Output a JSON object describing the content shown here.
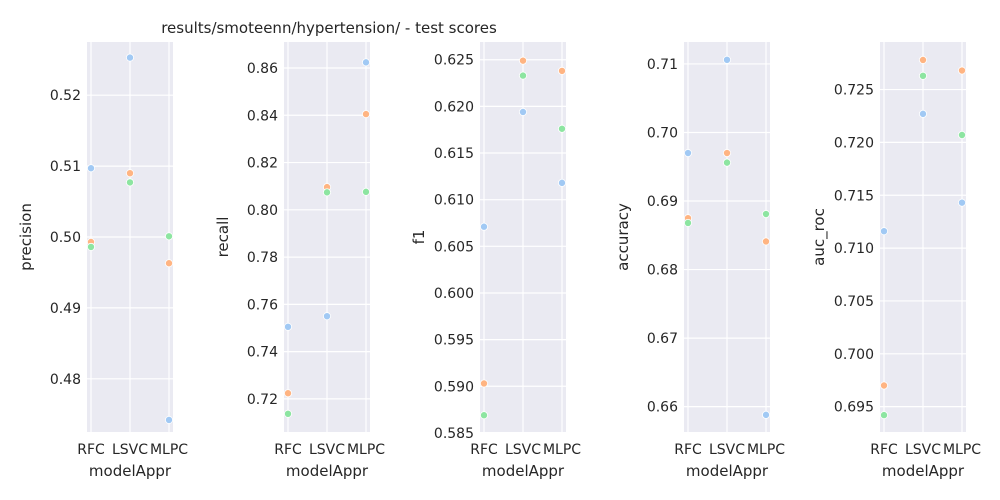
{
  "chart_data": {
    "type": "scatter",
    "title": "results/smoteenn/hypertension/ - test scores",
    "xlabel": "modelAppr",
    "categories": [
      "RFC",
      "LSVC",
      "MLPC"
    ],
    "palette": [
      "#a1c9f4",
      "#ffb482",
      "#8de5a1"
    ],
    "panels": [
      {
        "ylabel": "precision",
        "ylim": [
          0.4725,
          0.5275
        ],
        "yticks": [
          "0.48",
          "0.49",
          "0.50",
          "0.51",
          "0.52"
        ],
        "points": [
          {
            "x": "RFC",
            "y": 0.5097,
            "color": 0
          },
          {
            "x": "RFC",
            "y": 0.4993,
            "color": 1
          },
          {
            "x": "RFC",
            "y": 0.4986,
            "color": 2
          },
          {
            "x": "LSVC",
            "y": 0.5253,
            "color": 0
          },
          {
            "x": "LSVC",
            "y": 0.509,
            "color": 1
          },
          {
            "x": "LSVC",
            "y": 0.5077,
            "color": 2
          },
          {
            "x": "MLPC",
            "y": 0.4742,
            "color": 0
          },
          {
            "x": "MLPC",
            "y": 0.4963,
            "color": 1
          },
          {
            "x": "MLPC",
            "y": 0.5001,
            "color": 2
          }
        ]
      },
      {
        "ylabel": "recall",
        "ylim": [
          0.706,
          0.871
        ],
        "yticks": [
          "0.72",
          "0.74",
          "0.76",
          "0.78",
          "0.80",
          "0.82",
          "0.84",
          "0.86"
        ],
        "points": [
          {
            "x": "RFC",
            "y": 0.7505,
            "color": 0
          },
          {
            "x": "RFC",
            "y": 0.7224,
            "color": 1
          },
          {
            "x": "RFC",
            "y": 0.7137,
            "color": 2
          },
          {
            "x": "LSVC",
            "y": 0.755,
            "color": 0
          },
          {
            "x": "LSVC",
            "y": 0.8096,
            "color": 1
          },
          {
            "x": "LSVC",
            "y": 0.8074,
            "color": 2
          },
          {
            "x": "MLPC",
            "y": 0.8624,
            "color": 0
          },
          {
            "x": "MLPC",
            "y": 0.8405,
            "color": 1
          },
          {
            "x": "MLPC",
            "y": 0.8076,
            "color": 2
          }
        ]
      },
      {
        "ylabel": "f1",
        "ylim": [
          0.5851,
          0.6269
        ],
        "yticks": [
          "0.585",
          "0.590",
          "0.595",
          "0.600",
          "0.605",
          "0.610",
          "0.615",
          "0.620",
          "0.625"
        ],
        "points": [
          {
            "x": "RFC",
            "y": 0.6071,
            "color": 0
          },
          {
            "x": "RFC",
            "y": 0.5903,
            "color": 1
          },
          {
            "x": "RFC",
            "y": 0.5869,
            "color": 2
          },
          {
            "x": "LSVC",
            "y": 0.6194,
            "color": 0
          },
          {
            "x": "LSVC",
            "y": 0.6249,
            "color": 1
          },
          {
            "x": "LSVC",
            "y": 0.6233,
            "color": 2
          },
          {
            "x": "MLPC",
            "y": 0.6118,
            "color": 0
          },
          {
            "x": "MLPC",
            "y": 0.6238,
            "color": 1
          },
          {
            "x": "MLPC",
            "y": 0.6176,
            "color": 2
          }
        ]
      },
      {
        "ylabel": "accuracy",
        "ylim": [
          0.6563,
          0.7132
        ],
        "yticks": [
          "0.66",
          "0.67",
          "0.68",
          "0.69",
          "0.70",
          "0.71"
        ],
        "points": [
          {
            "x": "RFC",
            "y": 0.697,
            "color": 0
          },
          {
            "x": "RFC",
            "y": 0.6875,
            "color": 1
          },
          {
            "x": "RFC",
            "y": 0.6868,
            "color": 2
          },
          {
            "x": "LSVC",
            "y": 0.7106,
            "color": 0
          },
          {
            "x": "LSVC",
            "y": 0.697,
            "color": 1
          },
          {
            "x": "LSVC",
            "y": 0.6956,
            "color": 2
          },
          {
            "x": "MLPC",
            "y": 0.6588,
            "color": 0
          },
          {
            "x": "MLPC",
            "y": 0.6841,
            "color": 1
          },
          {
            "x": "MLPC",
            "y": 0.6881,
            "color": 2
          }
        ]
      },
      {
        "ylabel": "auc_roc",
        "ylim": [
          0.6926,
          0.7295
        ],
        "yticks": [
          "0.695",
          "0.700",
          "0.705",
          "0.710",
          "0.715",
          "0.720",
          "0.725"
        ],
        "points": [
          {
            "x": "RFC",
            "y": 0.7116,
            "color": 0
          },
          {
            "x": "RFC",
            "y": 0.697,
            "color": 1
          },
          {
            "x": "RFC",
            "y": 0.6942,
            "color": 2
          },
          {
            "x": "LSVC",
            "y": 0.7227,
            "color": 0
          },
          {
            "x": "LSVC",
            "y": 0.7278,
            "color": 1
          },
          {
            "x": "LSVC",
            "y": 0.7263,
            "color": 2
          },
          {
            "x": "MLPC",
            "y": 0.7143,
            "color": 0
          },
          {
            "x": "MLPC",
            "y": 0.7268,
            "color": 1
          },
          {
            "x": "MLPC",
            "y": 0.7207,
            "color": 2
          }
        ]
      }
    ]
  }
}
